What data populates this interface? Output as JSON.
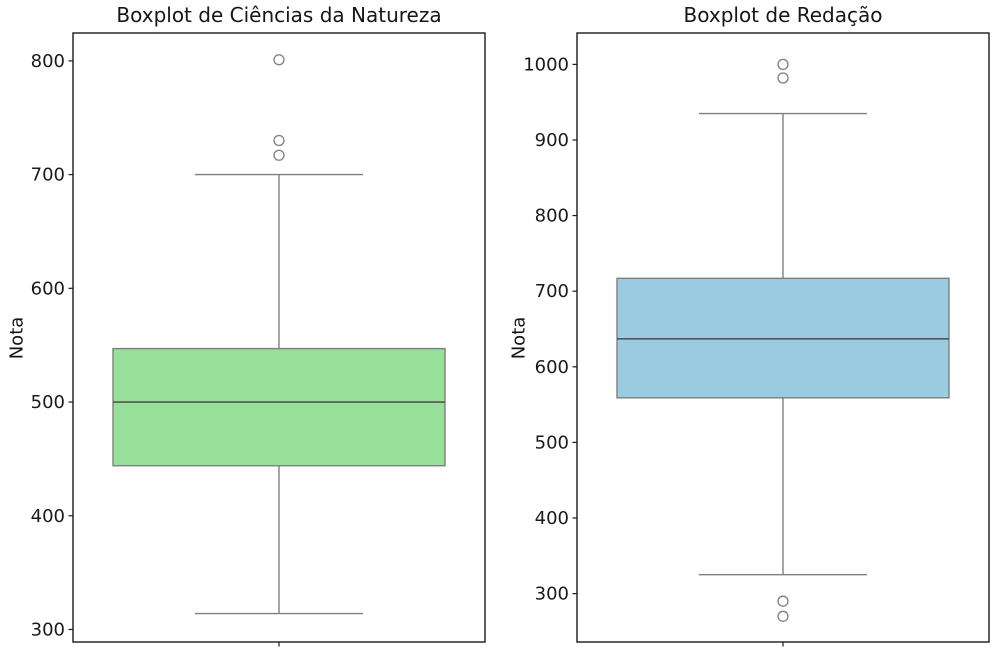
{
  "figure": {
    "background": "#ffffff",
    "spine_color": "#1a1a1a",
    "tick_color": "#1a1a1a",
    "whisker_color": "#7f7f7f",
    "median_color": "#555555",
    "outlier_edge_color": "#7f7f7f"
  },
  "chart_data": [
    {
      "type": "boxplot",
      "title": "Boxplot de Ciências da Natureza",
      "ylabel": "Nota",
      "xlabel": "",
      "box_fill": "#98DF9A",
      "grid": false,
      "legend": null,
      "ylim": [
        289,
        824.5
      ],
      "yticks": [
        300,
        400,
        500,
        600,
        700,
        800
      ],
      "stats": {
        "whisker_low": 314,
        "q1": 444,
        "median": 500,
        "q3": 547,
        "whisker_high": 700,
        "outliers_high": [
          801,
          730,
          717
        ],
        "outliers_low": []
      }
    },
    {
      "type": "boxplot",
      "title": "Boxplot de Redação",
      "ylabel": "Nota",
      "xlabel": "",
      "box_fill": "#9BCBE0",
      "grid": false,
      "legend": null,
      "ylim": [
        236,
        1041.5
      ],
      "yticks": [
        300,
        400,
        500,
        600,
        700,
        800,
        900,
        1000
      ],
      "stats": {
        "whisker_low": 325,
        "q1": 559,
        "median": 637,
        "q3": 717,
        "whisker_high": 935,
        "outliers_high": [
          1000,
          982
        ],
        "outliers_low": [
          290,
          270
        ]
      }
    }
  ]
}
